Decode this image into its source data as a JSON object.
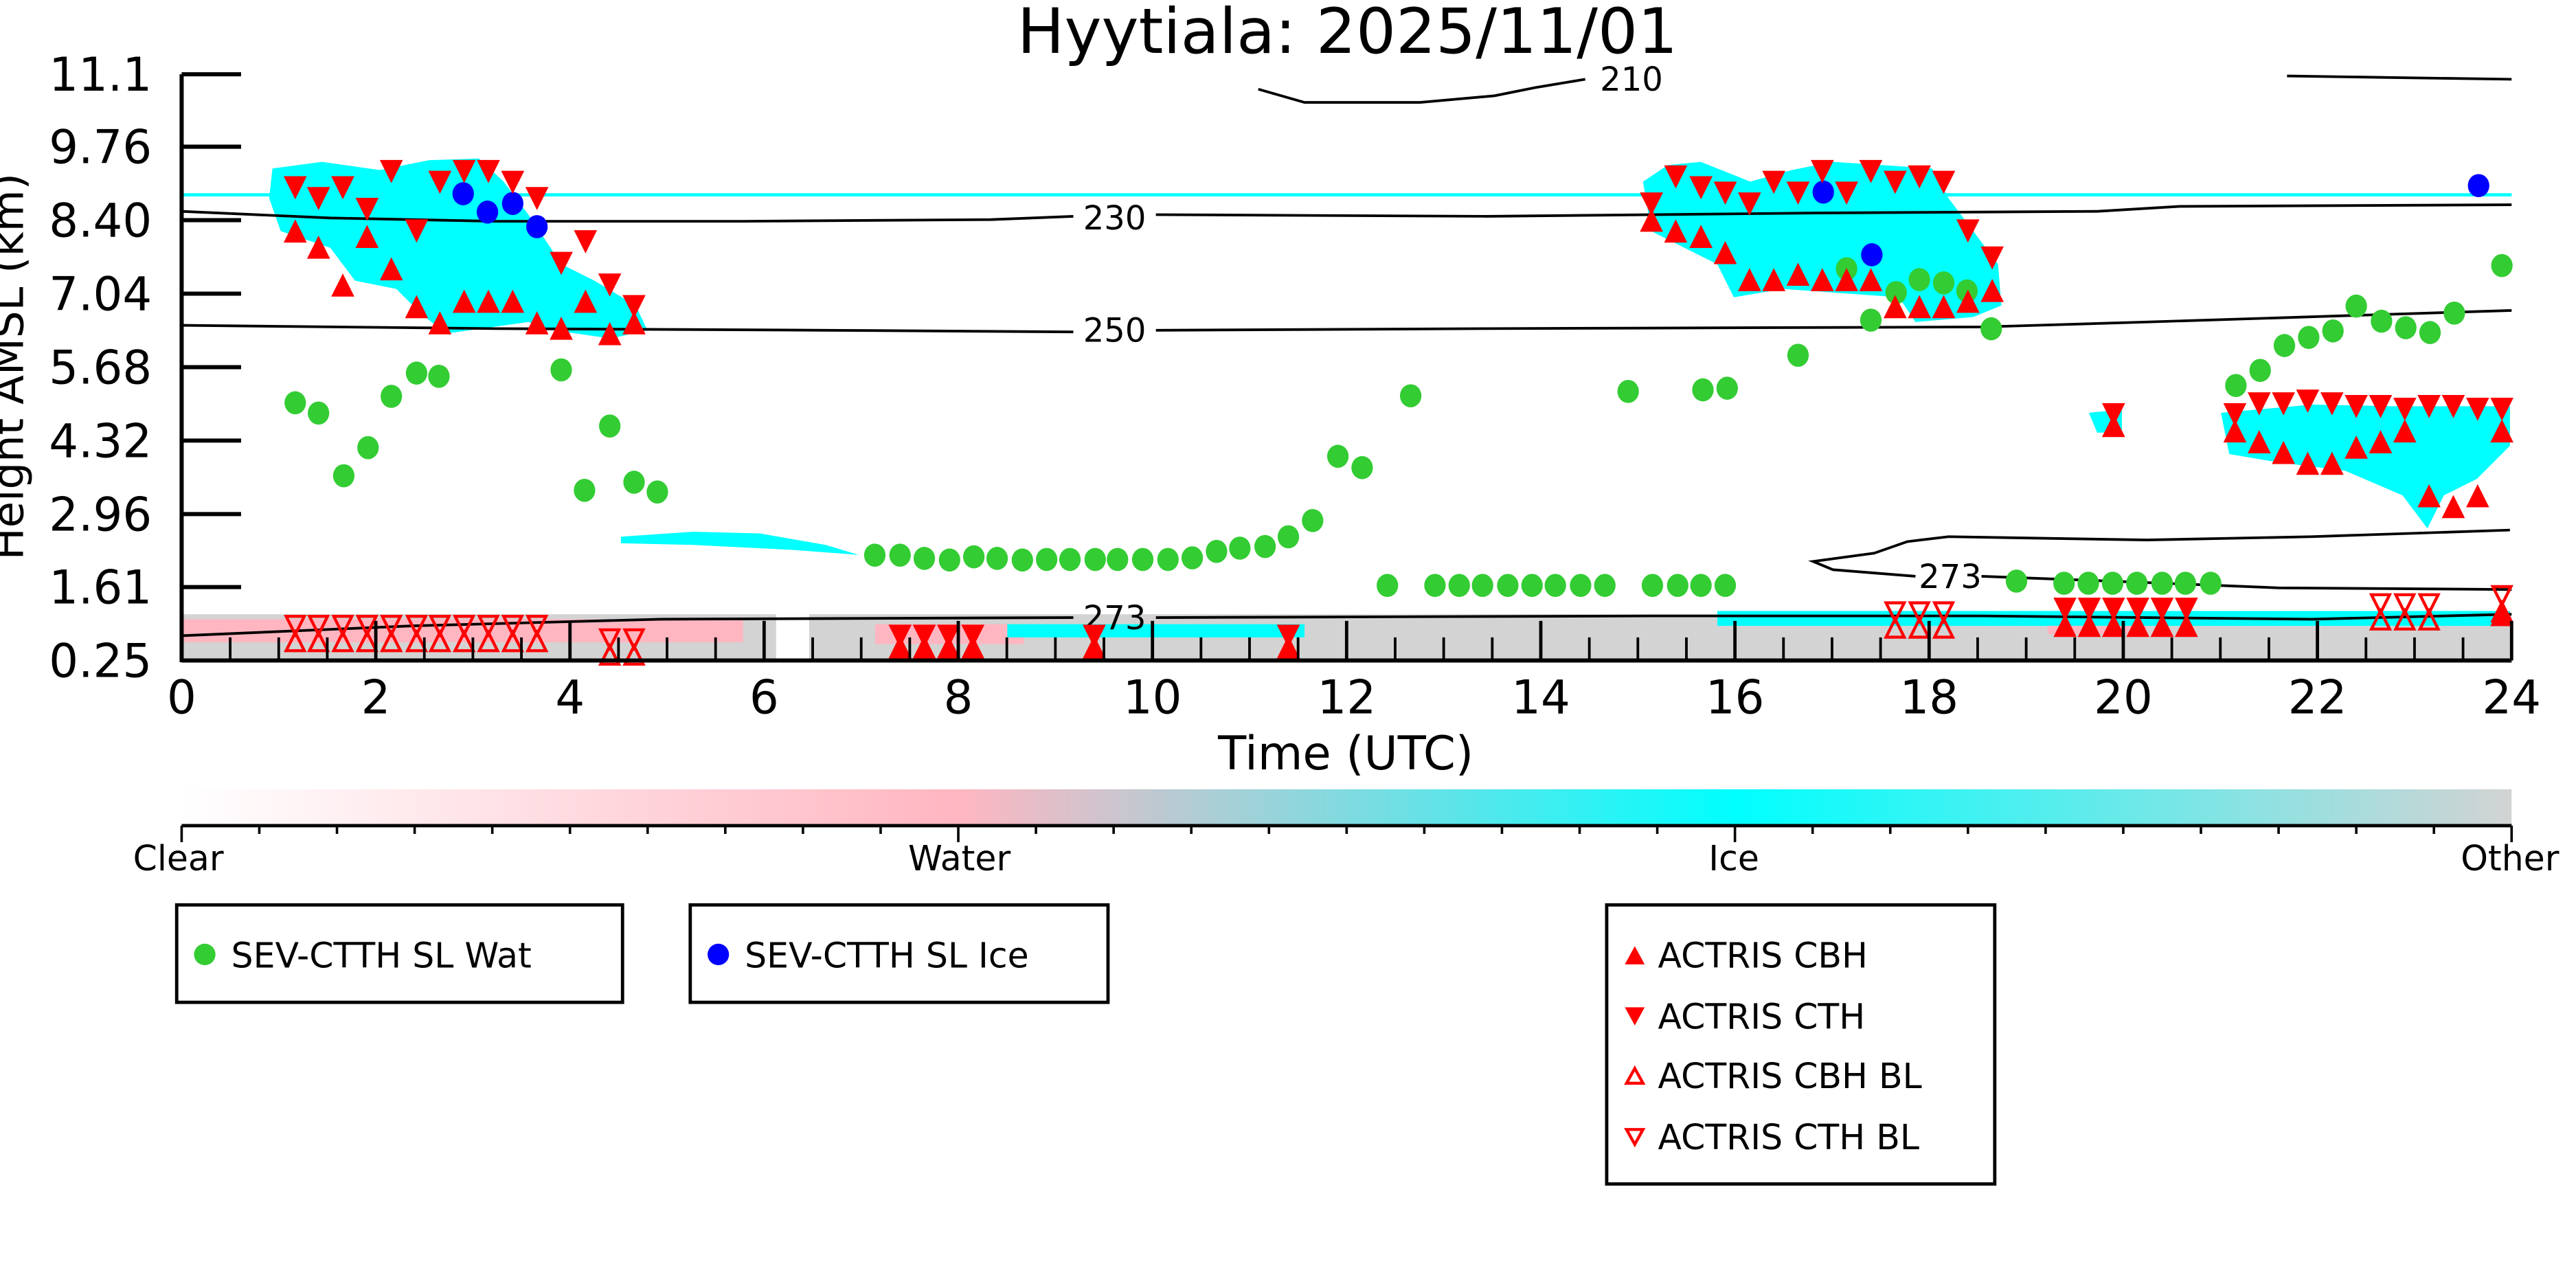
{
  "chart_data": {
    "type": "scatter",
    "title": "Hyytiala: 2025/11/01",
    "xlabel": "Time (UTC)",
    "ylabel": "Height AMSL (km)",
    "xlim": [
      0,
      24
    ],
    "ylim": [
      0.25,
      11.1
    ],
    "x_ticks": [
      "0",
      "2",
      "4",
      "6",
      "8",
      "10",
      "12",
      "14",
      "16",
      "18",
      "20",
      "22",
      "24"
    ],
    "y_ticks": [
      "0.25",
      "1.61",
      "2.96",
      "4.32",
      "5.68",
      "7.04",
      "8.40",
      "9.76",
      "11.1"
    ],
    "contour_labels": [
      "210",
      "230",
      "250",
      "273"
    ],
    "colorbar": {
      "labels": [
        "Clear",
        "Water",
        "Ice",
        "Other"
      ],
      "colors": [
        "#ffffff",
        "#ffb6c1",
        "#00ffff",
        "#d3d3d3"
      ]
    },
    "series": [
      {
        "name": "SEV-CTTH SL Wat",
        "marker": "circle",
        "color": "#33cc33",
        "points": [
          [
            1.17,
            5.02
          ],
          [
            1.41,
            4.83
          ],
          [
            1.67,
            3.67
          ],
          [
            1.92,
            4.19
          ],
          [
            2.16,
            5.14
          ],
          [
            2.42,
            5.57
          ],
          [
            2.65,
            5.51
          ],
          [
            3.91,
            5.63
          ],
          [
            4.15,
            3.4
          ],
          [
            4.41,
            4.59
          ],
          [
            4.66,
            3.55
          ],
          [
            4.9,
            3.37
          ],
          [
            7.14,
            2.2
          ],
          [
            7.4,
            2.2
          ],
          [
            7.65,
            2.14
          ],
          [
            7.91,
            2.11
          ],
          [
            8.16,
            2.17
          ],
          [
            8.4,
            2.14
          ],
          [
            8.66,
            2.11
          ],
          [
            8.91,
            2.12
          ],
          [
            9.15,
            2.12
          ],
          [
            9.41,
            2.12
          ],
          [
            9.64,
            2.12
          ],
          [
            9.9,
            2.12
          ],
          [
            10.16,
            2.12
          ],
          [
            10.41,
            2.15
          ],
          [
            10.66,
            2.27
          ],
          [
            10.9,
            2.33
          ],
          [
            11.16,
            2.36
          ],
          [
            11.4,
            2.54
          ],
          [
            11.65,
            2.84
          ],
          [
            11.91,
            4.03
          ],
          [
            12.16,
            3.82
          ],
          [
            12.66,
            5.15
          ],
          [
            12.42,
            1.64
          ],
          [
            12.91,
            1.64
          ],
          [
            13.16,
            1.64
          ],
          [
            13.4,
            1.64
          ],
          [
            13.66,
            1.64
          ],
          [
            13.91,
            1.64
          ],
          [
            14.15,
            1.64
          ],
          [
            14.41,
            1.64
          ],
          [
            14.66,
            1.64
          ],
          [
            15.15,
            1.64
          ],
          [
            15.41,
            1.64
          ],
          [
            15.65,
            1.64
          ],
          [
            15.9,
            1.64
          ],
          [
            14.9,
            5.23
          ],
          [
            15.67,
            5.26
          ],
          [
            15.92,
            5.29
          ],
          [
            16.65,
            5.9
          ],
          [
            17.15,
            7.5
          ],
          [
            17.4,
            6.55
          ],
          [
            17.66,
            7.06
          ],
          [
            17.9,
            7.3
          ],
          [
            18.15,
            7.24
          ],
          [
            18.39,
            7.09
          ],
          [
            18.64,
            6.39
          ],
          [
            18.9,
            1.72
          ],
          [
            19.39,
            1.68
          ],
          [
            19.64,
            1.68
          ],
          [
            19.89,
            1.68
          ],
          [
            20.14,
            1.68
          ],
          [
            20.4,
            1.68
          ],
          [
            20.64,
            1.68
          ],
          [
            20.9,
            1.68
          ],
          [
            21.16,
            5.34
          ],
          [
            21.41,
            5.62
          ],
          [
            21.66,
            6.08
          ],
          [
            21.91,
            6.23
          ],
          [
            22.16,
            6.35
          ],
          [
            22.4,
            6.81
          ],
          [
            22.66,
            6.53
          ],
          [
            22.91,
            6.41
          ],
          [
            23.16,
            6.32
          ],
          [
            23.41,
            6.68
          ],
          [
            23.9,
            7.56
          ]
        ]
      },
      {
        "name": "SEV-CTTH SL Ice",
        "marker": "circle",
        "color": "#0000ff",
        "points": [
          [
            2.9,
            8.89
          ],
          [
            3.15,
            8.55
          ],
          [
            3.41,
            8.71
          ],
          [
            3.66,
            8.28
          ],
          [
            16.91,
            8.92
          ],
          [
            17.41,
            7.76
          ],
          [
            23.66,
            9.04
          ]
        ]
      },
      {
        "name": "ACTRIS CBH",
        "marker": "triangle-up-filled",
        "color": "#ff0000",
        "points": [
          [
            1.17,
            8.2
          ],
          [
            1.41,
            7.9
          ],
          [
            1.66,
            7.2
          ],
          [
            1.91,
            8.1
          ],
          [
            2.16,
            7.5
          ],
          [
            2.42,
            6.8
          ],
          [
            2.66,
            6.5
          ],
          [
            2.91,
            6.9
          ],
          [
            3.16,
            6.9
          ],
          [
            3.41,
            6.9
          ],
          [
            3.66,
            6.5
          ],
          [
            3.91,
            6.4
          ],
          [
            4.16,
            6.9
          ],
          [
            4.41,
            6.3
          ],
          [
            4.66,
            6.5
          ],
          [
            15.14,
            8.4
          ],
          [
            15.39,
            8.2
          ],
          [
            15.65,
            8.1
          ],
          [
            15.9,
            7.8
          ],
          [
            16.15,
            7.3
          ],
          [
            16.4,
            7.3
          ],
          [
            16.65,
            7.4
          ],
          [
            16.9,
            7.3
          ],
          [
            17.15,
            7.3
          ],
          [
            17.4,
            7.3
          ],
          [
            17.65,
            6.8
          ],
          [
            17.9,
            6.8
          ],
          [
            18.15,
            6.8
          ],
          [
            18.4,
            6.9
          ],
          [
            18.65,
            7.1
          ],
          [
            19.9,
            4.6
          ],
          [
            21.15,
            4.5
          ],
          [
            21.4,
            4.3
          ],
          [
            21.65,
            4.1
          ],
          [
            21.9,
            3.9
          ],
          [
            22.15,
            3.9
          ],
          [
            22.4,
            4.2
          ],
          [
            22.65,
            4.3
          ],
          [
            22.9,
            4.5
          ],
          [
            23.15,
            3.3
          ],
          [
            23.4,
            3.1
          ],
          [
            23.65,
            3.3
          ],
          [
            23.9,
            4.5
          ],
          [
            7.4,
            0.5
          ],
          [
            7.65,
            0.5
          ],
          [
            7.9,
            0.5
          ],
          [
            8.15,
            0.5
          ],
          [
            9.4,
            0.5
          ],
          [
            11.4,
            0.5
          ],
          [
            19.4,
            0.9
          ],
          [
            19.65,
            0.9
          ],
          [
            19.9,
            0.9
          ],
          [
            20.15,
            0.9
          ],
          [
            20.4,
            0.9
          ],
          [
            20.65,
            0.9
          ],
          [
            23.9,
            1.1
          ]
        ]
      },
      {
        "name": "ACTRIS CTH",
        "marker": "triangle-down-filled",
        "color": "#ff0000",
        "points": [
          [
            1.17,
            9.0
          ],
          [
            1.41,
            8.8
          ],
          [
            1.66,
            9.0
          ],
          [
            1.91,
            8.6
          ],
          [
            2.16,
            9.3
          ],
          [
            2.42,
            8.2
          ],
          [
            2.66,
            9.1
          ],
          [
            2.91,
            9.3
          ],
          [
            3.16,
            9.3
          ],
          [
            3.41,
            9.1
          ],
          [
            3.66,
            8.8
          ],
          [
            3.91,
            7.6
          ],
          [
            4.16,
            8.0
          ],
          [
            4.41,
            7.2
          ],
          [
            4.66,
            6.8
          ],
          [
            15.14,
            8.7
          ],
          [
            15.39,
            9.2
          ],
          [
            15.65,
            9.0
          ],
          [
            15.9,
            8.9
          ],
          [
            16.15,
            8.7
          ],
          [
            16.4,
            9.1
          ],
          [
            16.65,
            8.9
          ],
          [
            16.9,
            9.3
          ],
          [
            17.15,
            8.9
          ],
          [
            17.4,
            9.3
          ],
          [
            17.65,
            9.1
          ],
          [
            17.9,
            9.2
          ],
          [
            18.15,
            9.1
          ],
          [
            18.4,
            8.2
          ],
          [
            18.65,
            7.7
          ],
          [
            19.9,
            4.8
          ],
          [
            21.15,
            4.8
          ],
          [
            21.4,
            5.0
          ],
          [
            21.65,
            5.0
          ],
          [
            21.9,
            5.05
          ],
          [
            22.15,
            5.0
          ],
          [
            22.4,
            4.95
          ],
          [
            22.65,
            4.95
          ],
          [
            22.9,
            4.9
          ],
          [
            23.15,
            4.95
          ],
          [
            23.4,
            4.95
          ],
          [
            23.65,
            4.9
          ],
          [
            23.9,
            4.9
          ],
          [
            7.4,
            0.7
          ],
          [
            7.65,
            0.7
          ],
          [
            7.9,
            0.7
          ],
          [
            8.15,
            0.7
          ],
          [
            9.4,
            0.7
          ],
          [
            11.4,
            0.7
          ],
          [
            19.4,
            1.2
          ],
          [
            19.65,
            1.2
          ],
          [
            19.9,
            1.2
          ],
          [
            20.15,
            1.2
          ],
          [
            20.4,
            1.2
          ],
          [
            20.65,
            1.2
          ]
        ]
      },
      {
        "name": "ACTRIS CBH BL",
        "marker": "triangle-up-open",
        "color": "#ff0000",
        "points": [
          [
            1.17,
            0.6
          ],
          [
            1.41,
            0.6
          ],
          [
            1.66,
            0.6
          ],
          [
            1.91,
            0.6
          ],
          [
            2.16,
            0.6
          ],
          [
            2.42,
            0.6
          ],
          [
            2.66,
            0.6
          ],
          [
            2.91,
            0.6
          ],
          [
            3.16,
            0.6
          ],
          [
            3.41,
            0.6
          ],
          [
            3.66,
            0.6
          ],
          [
            4.41,
            0.35
          ],
          [
            4.66,
            0.35
          ],
          [
            17.65,
            0.85
          ],
          [
            17.9,
            0.85
          ],
          [
            18.15,
            0.85
          ],
          [
            22.65,
            1.0
          ],
          [
            22.9,
            1.0
          ],
          [
            23.15,
            1.0
          ],
          [
            23.9,
            1.15
          ]
        ]
      },
      {
        "name": "ACTRIS CTH BL",
        "marker": "triangle-down-open",
        "color": "#ff0000",
        "points": [
          [
            1.17,
            0.9
          ],
          [
            1.41,
            0.9
          ],
          [
            1.66,
            0.9
          ],
          [
            1.91,
            0.9
          ],
          [
            2.16,
            0.9
          ],
          [
            2.42,
            0.9
          ],
          [
            2.66,
            0.9
          ],
          [
            2.91,
            0.9
          ],
          [
            3.16,
            0.9
          ],
          [
            3.41,
            0.9
          ],
          [
            3.66,
            0.9
          ],
          [
            4.41,
            0.65
          ],
          [
            4.66,
            0.65
          ],
          [
            17.65,
            1.15
          ],
          [
            17.9,
            1.15
          ],
          [
            18.15,
            1.15
          ],
          [
            22.65,
            1.3
          ],
          [
            22.9,
            1.3
          ],
          [
            23.15,
            1.3
          ],
          [
            23.9,
            1.45
          ]
        ]
      }
    ],
    "legend_placement": "below"
  }
}
